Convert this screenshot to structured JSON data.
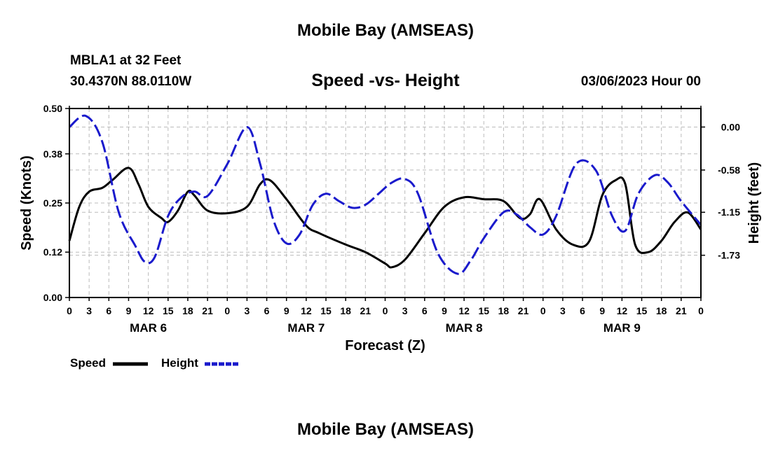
{
  "header": {
    "title": "Mobile Bay (AMSEAS)",
    "station": "MBLA1 at 32 Feet",
    "coords": "30.4370N  88.0110W",
    "date": "03/06/2023 Hour 00"
  },
  "footer": {
    "title": "Mobile Bay (AMSEAS)"
  },
  "legend": {
    "speed_label": "Speed",
    "height_label": "Height"
  },
  "colors": {
    "speed": "#000000",
    "height": "#1a1acc",
    "grid": "#bbbbbb"
  },
  "chart_data": {
    "type": "line",
    "title": "Speed -vs- Height",
    "xlabel": "Forecast (Z)",
    "ylabel": "Speed (Knots)",
    "y2label": "Height (feet)",
    "x_range_hours": [
      0,
      96
    ],
    "xtick_labels": [
      "0",
      "3",
      "6",
      "9",
      "12",
      "15",
      "18",
      "21",
      "0",
      "3",
      "6",
      "9",
      "12",
      "15",
      "18",
      "21",
      "0",
      "3",
      "6",
      "9",
      "12",
      "15",
      "18",
      "21",
      "0",
      "3",
      "6",
      "9",
      "12",
      "15",
      "18",
      "21",
      "0"
    ],
    "day_labels": [
      {
        "label": "MAR 6",
        "hour": 12
      },
      {
        "label": "MAR 7",
        "hour": 36
      },
      {
        "label": "MAR 8",
        "hour": 60
      },
      {
        "label": "MAR 9",
        "hour": 84
      }
    ],
    "ylim": [
      0,
      0.5
    ],
    "yticks": [
      0.0,
      0.12,
      0.25,
      0.38,
      0.5
    ],
    "ytick_labels": [
      "0.00",
      "0.12",
      "0.25",
      "0.38",
      "0.50"
    ],
    "y2lim": [
      -2.3,
      0.25
    ],
    "y2ticks": [
      0.0,
      -0.58,
      -1.15,
      -1.73
    ],
    "y2tick_labels": [
      "0.00",
      "-0.58",
      "-1.15",
      "-1.73"
    ],
    "grid": true,
    "series": [
      {
        "name": "Speed",
        "axis": "left",
        "style": "solid",
        "x": [
          0,
          1.5,
          3,
          5,
          6.5,
          9,
          10.5,
          12,
          14,
          15,
          16.5,
          18,
          19,
          21,
          24,
          27,
          29,
          30.5,
          33,
          36,
          38,
          42,
          45,
          48,
          49,
          51,
          54,
          57,
          60,
          63,
          66,
          68.5,
          70,
          71.5,
          74,
          76.5,
          79,
          81,
          83,
          84.5,
          86,
          88,
          90,
          92,
          94,
          96
        ],
        "values": [
          0.15,
          0.24,
          0.28,
          0.29,
          0.31,
          0.343,
          0.3,
          0.24,
          0.21,
          0.2,
          0.23,
          0.28,
          0.27,
          0.23,
          0.223,
          0.24,
          0.3,
          0.31,
          0.26,
          0.19,
          0.17,
          0.14,
          0.12,
          0.09,
          0.08,
          0.1,
          0.17,
          0.24,
          0.265,
          0.26,
          0.255,
          0.21,
          0.22,
          0.26,
          0.18,
          0.14,
          0.148,
          0.27,
          0.31,
          0.3,
          0.14,
          0.12,
          0.15,
          0.2,
          0.225,
          0.18
        ]
      },
      {
        "name": "Height",
        "axis": "right",
        "style": "dashed",
        "x": [
          0,
          2.5,
          5,
          7.5,
          10,
          11.5,
          13,
          15,
          17,
          19,
          21,
          24,
          27,
          29,
          31,
          33,
          35,
          37,
          39,
          41,
          43,
          45,
          47,
          49,
          51,
          53,
          56,
          59,
          61,
          63,
          66,
          68,
          70,
          72,
          74,
          77,
          80,
          82.5,
          84.5,
          86.5,
          89,
          91,
          93,
          96
        ],
        "values": [
          0.0,
          0.15,
          -0.2,
          -1.15,
          -1.6,
          -1.82,
          -1.75,
          -1.2,
          -0.95,
          -0.87,
          -0.93,
          -0.5,
          0.0,
          -0.5,
          -1.25,
          -1.57,
          -1.45,
          -1.05,
          -0.9,
          -1.0,
          -1.09,
          -1.05,
          -0.9,
          -0.75,
          -0.7,
          -0.9,
          -1.7,
          -1.98,
          -1.8,
          -1.5,
          -1.15,
          -1.18,
          -1.35,
          -1.45,
          -1.2,
          -0.5,
          -0.58,
          -1.2,
          -1.4,
          -0.9,
          -0.65,
          -0.75,
          -1.0,
          -1.32
        ]
      }
    ]
  }
}
